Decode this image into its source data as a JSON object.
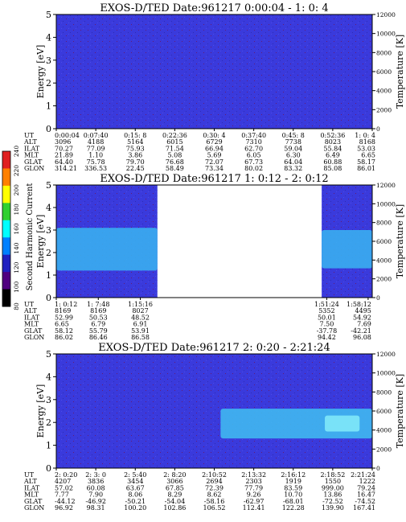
{
  "colorbar": {
    "label": "Second Harmonic Current",
    "ticks": [
      "240",
      "220",
      "200",
      "180",
      "160",
      "140",
      "120",
      "100",
      "80"
    ],
    "stops": [
      "#e02020",
      "#ff8000",
      "#ffff00",
      "#30d030",
      "#00ffff",
      "#0080ff",
      "#2020c0",
      "#500080",
      "#000000"
    ]
  },
  "chart_data": [
    {
      "type": "heatmap",
      "title": "EXOS-D/TED   Date:961217  0:00:04 - 1: 0: 4",
      "ylabel": "Energy [eV]",
      "ylabel_right": "Temperature [K]",
      "ylim": [
        0,
        5
      ],
      "yticks": [
        "5",
        "4",
        "3",
        "2",
        "1",
        "0"
      ],
      "ylim_right": [
        0,
        12000
      ],
      "yticks_right": [
        "12000",
        "10000",
        "8000",
        "6000",
        "4000",
        "2000",
        "0"
      ],
      "background": "#3a3adc",
      "gaps": [],
      "bands": [],
      "row_labels": [
        "UT",
        "ALT",
        "ILAT",
        "MLT",
        "GLAT",
        "GLON"
      ],
      "ticks": [
        {
          "UT": "0:00:04",
          "ALT": "3096",
          "ILAT": "70.27",
          "MLT": "21.89",
          "GLAT": "64.40",
          "GLON": "314.21"
        },
        {
          "UT": "0:07:40",
          "ALT": "4188",
          "ILAT": "77.09",
          "MLT": "1.10",
          "GLAT": "75.78",
          "GLON": "336.53"
        },
        {
          "UT": "0:15: 8",
          "ALT": "5164",
          "ILAT": "75.93",
          "MLT": "3.86",
          "GLAT": "79.70",
          "GLON": "22.45"
        },
        {
          "UT": "0:22:36",
          "ALT": "6015",
          "ILAT": "71.54",
          "MLT": "5.08",
          "GLAT": "76.68",
          "GLON": "58.49"
        },
        {
          "UT": "0:30: 4",
          "ALT": "6729",
          "ILAT": "66.94",
          "MLT": "5.69",
          "GLAT": "72.07",
          "GLON": "73.34"
        },
        {
          "UT": "0:37:40",
          "ALT": "7310",
          "ILAT": "62.70",
          "MLT": "6.05",
          "GLAT": "67.73",
          "GLON": "80.02"
        },
        {
          "UT": "0:45: 8",
          "ALT": "7738",
          "ILAT": "59.04",
          "MLT": "6.30",
          "GLAT": "64.04",
          "GLON": "83.32"
        },
        {
          "UT": "0:52:36",
          "ALT": "8023",
          "ILAT": "55.84",
          "MLT": "6.49",
          "GLAT": "60.88",
          "GLON": "85.08"
        },
        {
          "UT": "1: 0: 4",
          "ALT": "8168",
          "ILAT": "53.03",
          "MLT": "6.65",
          "GLAT": "58.17",
          "GLON": "86.01"
        }
      ]
    },
    {
      "type": "heatmap",
      "title": "EXOS-D/TED   Date:961217  1: 0:12 - 2: 0:12",
      "ylabel": "Energy [eV]",
      "ylabel_right": "Temperature [K]",
      "ylim": [
        0,
        5
      ],
      "yticks": [
        "5",
        "4",
        "3",
        "2",
        "1",
        "0"
      ],
      "ylim_right": [
        0,
        12000
      ],
      "yticks_right": [
        "12000",
        "10000",
        "8000",
        "6000",
        "4000",
        "2000",
        "0"
      ],
      "background": "#3a3adc",
      "gaps": [
        [
          0.32,
          0.84
        ]
      ],
      "bands": [
        {
          "x0": 0.0,
          "x1": 0.32,
          "y0": 1.2,
          "y1": 3.1,
          "color": "#3aaef0"
        },
        {
          "x0": 0.84,
          "x1": 1.0,
          "y0": 1.3,
          "y1": 3.0,
          "color": "#3aaef0"
        }
      ],
      "row_labels": [
        "UT",
        "ALT",
        "ILAT",
        "MLT",
        "GLAT",
        "GLON"
      ],
      "ticks": [
        {
          "frac": 0.0,
          "UT": "1: 0:12",
          "ALT": "8169",
          "ILAT": "52.99",
          "MLT": "6.65",
          "GLAT": "58.12",
          "GLON": "86.02"
        },
        {
          "frac": 0.133,
          "UT": "1: 7:48",
          "ALT": "8169",
          "ILAT": "50.53",
          "MLT": "6.79",
          "GLAT": "55.79",
          "GLON": "86.46"
        },
        {
          "frac": 0.266,
          "UT": "1:15:16",
          "ALT": "8027",
          "ILAT": "48.52",
          "MLT": "6.91",
          "GLAT": "53.91",
          "GLON": "86.58"
        },
        {
          "frac": 0.856,
          "UT": "1:51:24",
          "ALT": "5352",
          "ILAT": "50.01",
          "MLT": "7.50",
          "GLAT": "-37.78",
          "GLON": "94.42"
        },
        {
          "frac": 0.987,
          "UT": "1:58:12",
          "ALT": "4495",
          "ILAT": "54.92",
          "MLT": "7.69",
          "GLAT": "-42.21",
          "GLON": "96.08"
        }
      ]
    },
    {
      "type": "heatmap",
      "title": "EXOS-D/TED   Date:961217  2: 0:20 - 2:21:24",
      "ylabel": "Energy [eV]",
      "ylabel_right": "Temperature [K]",
      "ylim": [
        0,
        5
      ],
      "yticks": [
        "5",
        "4",
        "3",
        "2",
        "1",
        "0"
      ],
      "ylim_right": [
        0,
        12000
      ],
      "yticks_right": [
        "12000",
        "10000",
        "8000",
        "6000",
        "4000",
        "2000",
        "0"
      ],
      "background": "#3a3adc",
      "gaps": [],
      "bands": [
        {
          "x0": 0.52,
          "x1": 1.0,
          "y0": 1.3,
          "y1": 2.6,
          "color": "#40b8f0"
        },
        {
          "x0": 0.85,
          "x1": 0.96,
          "y0": 1.6,
          "y1": 2.3,
          "color": "#7fe8f8"
        }
      ],
      "row_labels": [
        "UT",
        "ALT",
        "ILAT",
        "MLT",
        "GLAT",
        "GLON"
      ],
      "ticks": [
        {
          "UT": "2: 0:20",
          "ALT": "4207",
          "ILAT": "57.02",
          "MLT": "7.77",
          "GLAT": "-44.12",
          "GLON": "96.92"
        },
        {
          "UT": "2: 3: 0",
          "ALT": "3836",
          "ILAT": "60.08",
          "MLT": "7.90",
          "GLAT": "-46.92",
          "GLON": "98.31"
        },
        {
          "UT": "2: 5:40",
          "ALT": "3454",
          "ILAT": "63.67",
          "MLT": "8.06",
          "GLAT": "-50.21",
          "GLON": "100.20"
        },
        {
          "UT": "2: 8:20",
          "ALT": "3066",
          "ILAT": "67.85",
          "MLT": "8.29",
          "GLAT": "-54.04",
          "GLON": "102.86"
        },
        {
          "UT": "2:10:52",
          "ALT": "2694",
          "ILAT": "72.39",
          "MLT": "8.62",
          "GLAT": "-58.16",
          "GLON": "106.52"
        },
        {
          "UT": "2:13:32",
          "ALT": "2303",
          "ILAT": "77.79",
          "MLT": "9.26",
          "GLAT": "-62.97",
          "GLON": "112.41"
        },
        {
          "UT": "2:16:12",
          "ALT": "1919",
          "ILAT": "83.59",
          "MLT": "10.70",
          "GLAT": "-68.01",
          "GLON": "122.28"
        },
        {
          "UT": "2:18:52",
          "ALT": "1550",
          "ILAT": "999.00",
          "MLT": "13.86",
          "GLAT": "-72.52",
          "GLON": "139.90"
        },
        {
          "UT": "2:21:24",
          "ALT": "1222",
          "ILAT": "79.24",
          "MLT": "16.47",
          "GLAT": "-74.52",
          "GLON": "167.41"
        }
      ]
    }
  ]
}
